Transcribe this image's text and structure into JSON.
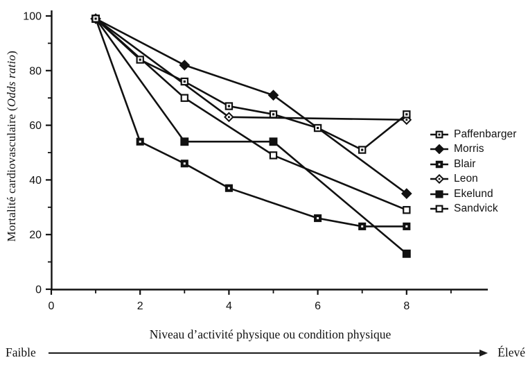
{
  "chart_data": {
    "type": "line",
    "title": "",
    "xlabel": "Niveau d’activité physique ou condition physique",
    "ylabel_prefix": "Mortalité cardiovasculaire (",
    "ylabel_italic": "Odds ratio",
    "ylabel_suffix": ")",
    "xlim": [
      0,
      9.6
    ],
    "ylim": [
      0,
      100
    ],
    "x_major_ticks": [
      0,
      2,
      4,
      6,
      8
    ],
    "x_minor_ticks": [
      1,
      3,
      5,
      7,
      9
    ],
    "y_major_ticks": [
      0,
      20,
      40,
      60,
      80,
      100
    ],
    "y_minor_ticks": [
      10,
      30,
      50,
      70,
      90
    ],
    "grid": false,
    "legend_position": "right",
    "direction_low_label": "Faible",
    "direction_high_label": "Élevé",
    "colors": {
      "line": "#111111",
      "background": "#ffffff"
    },
    "series": [
      {
        "name": "Paffenbarger",
        "marker": "open-square-dot",
        "points": [
          [
            1,
            99
          ],
          [
            2,
            84
          ],
          [
            3,
            76
          ],
          [
            4,
            67
          ],
          [
            5,
            64
          ],
          [
            6,
            59
          ],
          [
            7,
            51
          ],
          [
            8,
            64
          ]
        ]
      },
      {
        "name": "Morris",
        "marker": "filled-diamond",
        "points": [
          [
            1,
            99
          ],
          [
            3,
            82
          ],
          [
            5,
            71
          ],
          [
            8,
            35
          ]
        ]
      },
      {
        "name": "Blair",
        "marker": "filled-square-dot",
        "points": [
          [
            1,
            99
          ],
          [
            2,
            54
          ],
          [
            3,
            46
          ],
          [
            4,
            37
          ],
          [
            6,
            26
          ],
          [
            7,
            23
          ],
          [
            8,
            23
          ]
        ]
      },
      {
        "name": "Leon",
        "marker": "diamond-dot",
        "points": [
          [
            1,
            99
          ],
          [
            4,
            63
          ],
          [
            8,
            62
          ]
        ]
      },
      {
        "name": "Ekelund",
        "marker": "filled-square",
        "points": [
          [
            1,
            99
          ],
          [
            3,
            54
          ],
          [
            5,
            54
          ],
          [
            8,
            13
          ]
        ]
      },
      {
        "name": "Sandvick",
        "marker": "open-square",
        "points": [
          [
            1,
            99
          ],
          [
            3,
            70
          ],
          [
            5,
            49
          ],
          [
            8,
            29
          ]
        ]
      }
    ]
  }
}
